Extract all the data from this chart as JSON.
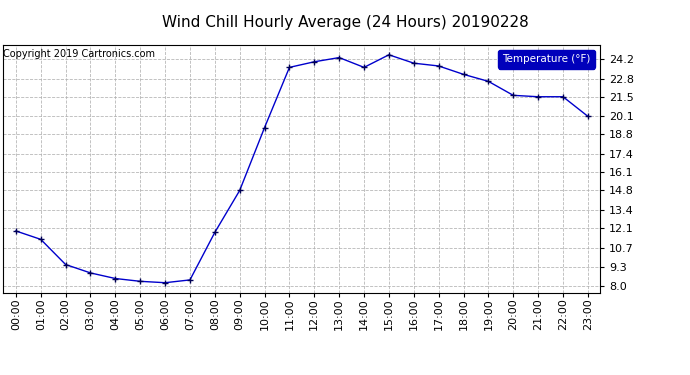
{
  "title": "Wind Chill Hourly Average (24 Hours) 20190228",
  "copyright": "Copyright 2019 Cartronics.com",
  "legend_label": "Temperature (°F)",
  "x_labels": [
    "00:00",
    "01:00",
    "02:00",
    "03:00",
    "04:00",
    "05:00",
    "06:00",
    "07:00",
    "08:00",
    "09:00",
    "10:00",
    "11:00",
    "12:00",
    "13:00",
    "14:00",
    "15:00",
    "16:00",
    "17:00",
    "18:00",
    "19:00",
    "20:00",
    "21:00",
    "22:00",
    "23:00"
  ],
  "y_values": [
    11.9,
    11.3,
    9.5,
    8.9,
    8.5,
    8.3,
    8.2,
    8.4,
    11.8,
    14.8,
    19.3,
    23.6,
    24.0,
    24.3,
    23.6,
    24.5,
    23.9,
    23.7,
    23.1,
    22.6,
    21.6,
    21.5,
    21.5,
    20.1
  ],
  "ylim": [
    7.5,
    25.2
  ],
  "yticks": [
    8.0,
    9.3,
    10.7,
    12.1,
    13.4,
    14.8,
    16.1,
    17.4,
    18.8,
    20.1,
    21.5,
    22.8,
    24.2
  ],
  "line_color": "#0000cc",
  "marker_color": "#000055",
  "background_color": "#ffffff",
  "grid_color": "#b0b0b0",
  "title_fontsize": 11,
  "copyright_fontsize": 7,
  "tick_fontsize": 8,
  "legend_bg": "#0000bb",
  "legend_text_color": "#ffffff"
}
